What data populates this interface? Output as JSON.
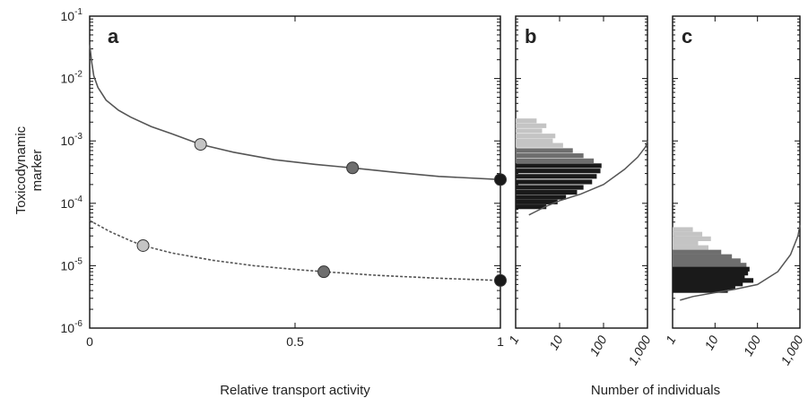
{
  "colors": {
    "curve": "#555555",
    "frame": "#111111",
    "light_gray": "#c4c4c4",
    "mid_gray": "#6e6e6e",
    "black": "#1a1a1a"
  },
  "labels": {
    "y_axis_line1": "Toxicodynamic",
    "y_axis_line2": "marker",
    "x_axis_a": "Relative transport activity",
    "x_axis_bc": "Number of individuals"
  },
  "chart_data": [
    {
      "panel": "a",
      "type": "line",
      "xlabel": "Relative transport activity",
      "ylabel": "Toxicodynamic marker",
      "xlim": [
        0,
        1
      ],
      "ylim": [
        1e-06,
        0.1
      ],
      "yscale": "log",
      "x_ticks": [
        "0",
        "0.5",
        "1"
      ],
      "y_ticks": [
        {
          "base": "10",
          "exp": "-6"
        },
        {
          "base": "10",
          "exp": "-5"
        },
        {
          "base": "10",
          "exp": "-4"
        },
        {
          "base": "10",
          "exp": "-3"
        },
        {
          "base": "10",
          "exp": "-2"
        },
        {
          "base": "10",
          "exp": "-1"
        }
      ],
      "series": [
        {
          "style": "solid",
          "x": [
            0.0,
            0.005,
            0.01,
            0.02,
            0.04,
            0.07,
            0.1,
            0.15,
            0.2,
            0.27,
            0.35,
            0.45,
            0.55,
            0.64,
            0.75,
            0.85,
            1.0
          ],
          "y": [
            0.035,
            0.018,
            0.011,
            0.0072,
            0.0045,
            0.0031,
            0.0024,
            0.0017,
            0.0013,
            0.00088,
            0.00066,
            0.0005,
            0.00042,
            0.00037,
            0.00031,
            0.00027,
            0.00024
          ],
          "markers": [
            {
              "x": 0.27,
              "y": 0.00088,
              "shade": "light"
            },
            {
              "x": 0.64,
              "y": 0.00037,
              "shade": "mid"
            },
            {
              "x": 1.0,
              "y": 0.00024,
              "shade": "dark"
            }
          ]
        },
        {
          "style": "dashed",
          "x": [
            0.0,
            0.05,
            0.1,
            0.13,
            0.2,
            0.3,
            0.4,
            0.5,
            0.57,
            0.7,
            0.85,
            1.0
          ],
          "y": [
            5.3e-05,
            3.5e-05,
            2.5e-05,
            2.1e-05,
            1.6e-05,
            1.22e-05,
            1e-05,
            8.7e-06,
            8e-06,
            7e-06,
            6.3e-06,
            5.8e-06
          ],
          "markers": [
            {
              "x": 0.13,
              "y": 2.1e-05,
              "shade": "light"
            },
            {
              "x": 0.57,
              "y": 8e-06,
              "shade": "mid"
            },
            {
              "x": 1.0,
              "y": 5.8e-06,
              "shade": "dark"
            }
          ]
        }
      ]
    },
    {
      "panel": "b",
      "type": "bar",
      "orientation": "horizontal",
      "xlabel": "Number of individuals",
      "xscale": "log",
      "xlim": [
        1,
        1000
      ],
      "x_ticks": [
        "1",
        "10",
        "100",
        "1,000"
      ],
      "ylim": [
        1e-06,
        0.1
      ],
      "yscale": "log",
      "bins": [
        {
          "y": 0.0021,
          "count": 3,
          "shade": "light"
        },
        {
          "y": 0.00175,
          "count": 5,
          "shade": "light"
        },
        {
          "y": 0.00145,
          "count": 4,
          "shade": "light"
        },
        {
          "y": 0.0012,
          "count": 8,
          "shade": "light"
        },
        {
          "y": 0.001,
          "count": 7,
          "shade": "light"
        },
        {
          "y": 0.00085,
          "count": 12,
          "shade": "light"
        },
        {
          "y": 0.0007,
          "count": 20,
          "shade": "mid"
        },
        {
          "y": 0.00058,
          "count": 35,
          "shade": "mid"
        },
        {
          "y": 0.00048,
          "count": 60,
          "shade": "mid"
        },
        {
          "y": 0.0004,
          "count": 90,
          "shade": "dark"
        },
        {
          "y": 0.00033,
          "count": 85,
          "shade": "dark"
        },
        {
          "y": 0.00027,
          "count": 70,
          "shade": "dark"
        },
        {
          "y": 0.00022,
          "count": 55,
          "shade": "dark"
        },
        {
          "y": 0.00018,
          "count": 35,
          "shade": "dark"
        },
        {
          "y": 0.00015,
          "count": 25,
          "shade": "dark"
        },
        {
          "y": 0.000125,
          "count": 14,
          "shade": "dark"
        },
        {
          "y": 0.000105,
          "count": 9,
          "shade": "dark"
        },
        {
          "y": 8.8e-05,
          "count": 5,
          "shade": "dark"
        }
      ],
      "curve": {
        "counts": [
          2,
          3,
          5,
          10,
          30,
          100,
          300,
          600,
          900,
          1000
        ],
        "y": [
          6.5e-05,
          7.5e-05,
          9e-05,
          0.00011,
          0.00014,
          0.0002,
          0.00035,
          0.00055,
          0.0008,
          0.001
        ]
      }
    },
    {
      "panel": "c",
      "type": "bar",
      "orientation": "horizontal",
      "xlabel": "Number of individuals",
      "xscale": "log",
      "xlim": [
        1,
        1000
      ],
      "x_ticks": [
        "1",
        "10",
        "100",
        "1,000"
      ],
      "ylim": [
        1e-06,
        0.1
      ],
      "yscale": "log",
      "bins": [
        {
          "y": 3.8e-05,
          "count": 3,
          "shade": "light"
        },
        {
          "y": 3.2e-05,
          "count": 5,
          "shade": "light"
        },
        {
          "y": 2.7e-05,
          "count": 8,
          "shade": "light"
        },
        {
          "y": 2.3e-05,
          "count": 4,
          "shade": "light"
        },
        {
          "y": 1.95e-05,
          "count": 7,
          "shade": "light"
        },
        {
          "y": 1.65e-05,
          "count": 14,
          "shade": "mid"
        },
        {
          "y": 1.4e-05,
          "count": 25,
          "shade": "mid"
        },
        {
          "y": 1.2e-05,
          "count": 40,
          "shade": "mid"
        },
        {
          "y": 1.02e-05,
          "count": 55,
          "shade": "mid"
        },
        {
          "y": 8.8e-06,
          "count": 65,
          "shade": "dark"
        },
        {
          "y": 7.6e-06,
          "count": 60,
          "shade": "dark"
        },
        {
          "y": 6.6e-06,
          "count": 50,
          "shade": "dark"
        },
        {
          "y": 5.8e-06,
          "count": 80,
          "shade": "dark"
        },
        {
          "y": 5.1e-06,
          "count": 45,
          "shade": "dark"
        },
        {
          "y": 4.5e-06,
          "count": 30,
          "shade": "dark"
        },
        {
          "y": 4e-06,
          "count": 20,
          "shade": "dark"
        }
      ],
      "curve": {
        "counts": [
          1.5,
          3,
          8,
          30,
          100,
          300,
          600,
          900,
          1000
        ],
        "y": [
          2.8e-06,
          3.2e-06,
          3.6e-06,
          4.2e-06,
          5e-06,
          8e-06,
          1.5e-05,
          3e-05,
          4.5e-05
        ]
      }
    }
  ]
}
